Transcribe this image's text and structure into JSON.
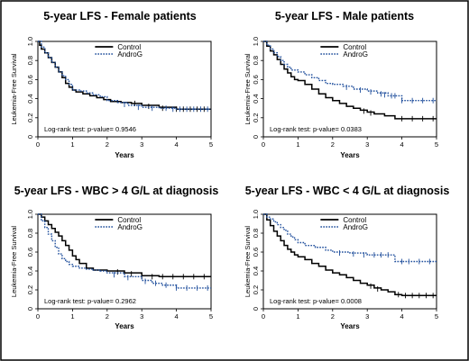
{
  "chart_data": [
    {
      "type": "line",
      "title": "5-year LFS - Female patients",
      "xlabel": "Years",
      "ylabel": "Leukemia-Free Survival",
      "xlim": [
        0,
        5
      ],
      "ylim": [
        0,
        1
      ],
      "xticks": [
        "0",
        "1",
        "2",
        "3",
        "4",
        "5"
      ],
      "yticks": [
        "0",
        "0.2",
        "0.4",
        "0.6",
        "0.8",
        "1.0"
      ],
      "legend_position": "top-center",
      "annotation": "Log-rank test: p-value= 0.9546",
      "series": [
        {
          "name": "Control",
          "color": "#000000",
          "style": "solid",
          "x": [
            0,
            0.05,
            0.1,
            0.2,
            0.3,
            0.4,
            0.5,
            0.6,
            0.7,
            0.8,
            0.9,
            1.0,
            1.1,
            1.3,
            1.5,
            1.7,
            1.9,
            2.1,
            2.4,
            2.7,
            3.0,
            3.5,
            4.0,
            5.0
          ],
          "y": [
            1.0,
            0.96,
            0.92,
            0.88,
            0.83,
            0.78,
            0.73,
            0.68,
            0.62,
            0.56,
            0.52,
            0.49,
            0.47,
            0.45,
            0.43,
            0.41,
            0.39,
            0.37,
            0.36,
            0.35,
            0.33,
            0.31,
            0.29,
            0.29
          ],
          "censor_x": [
            2.8,
            3.2,
            3.6,
            4.0,
            4.2,
            4.4,
            4.6,
            4.8
          ],
          "censor_y": [
            0.35,
            0.32,
            0.3,
            0.29,
            0.29,
            0.29,
            0.29,
            0.29
          ]
        },
        {
          "name": "AndroG",
          "color": "#1f4e9c",
          "style": "dotted",
          "x": [
            0,
            0.1,
            0.2,
            0.3,
            0.4,
            0.5,
            0.6,
            0.7,
            0.8,
            0.9,
            1.0,
            1.2,
            1.4,
            1.6,
            1.8,
            2.0,
            2.3,
            2.6,
            3.0,
            3.5,
            4.0,
            5.0
          ],
          "y": [
            1.0,
            0.94,
            0.88,
            0.83,
            0.78,
            0.73,
            0.68,
            0.64,
            0.6,
            0.55,
            0.49,
            0.48,
            0.46,
            0.44,
            0.42,
            0.38,
            0.36,
            0.33,
            0.31,
            0.3,
            0.29,
            0.29
          ],
          "censor_x": [
            2.5,
            2.9,
            3.3,
            3.7,
            3.9,
            4.1,
            4.3,
            4.5,
            4.7,
            4.9
          ],
          "censor_y": [
            0.34,
            0.31,
            0.3,
            0.3,
            0.29,
            0.29,
            0.29,
            0.29,
            0.29,
            0.29
          ]
        }
      ]
    },
    {
      "type": "line",
      "title": "5-year LFS - Male patients",
      "xlabel": "Years",
      "ylabel": "Leukemia-Free Survival",
      "xlim": [
        0,
        5
      ],
      "ylim": [
        0,
        1
      ],
      "xticks": [
        "0",
        "1",
        "2",
        "3",
        "4",
        "5"
      ],
      "yticks": [
        "0",
        "0.2",
        "0.4",
        "0.6",
        "0.8",
        "1.0"
      ],
      "legend_position": "top-center",
      "annotation": "Log-rank test: p-value= 0.0383",
      "series": [
        {
          "name": "Control",
          "color": "#000000",
          "style": "solid",
          "x": [
            0,
            0.1,
            0.2,
            0.3,
            0.4,
            0.5,
            0.6,
            0.7,
            0.8,
            0.9,
            1.0,
            1.2,
            1.4,
            1.6,
            1.8,
            2.0,
            2.2,
            2.4,
            2.6,
            2.8,
            3.0,
            3.2,
            3.5,
            3.8,
            4.0,
            5.0
          ],
          "y": [
            1.0,
            0.95,
            0.9,
            0.86,
            0.81,
            0.76,
            0.71,
            0.67,
            0.63,
            0.6,
            0.59,
            0.55,
            0.5,
            0.45,
            0.41,
            0.38,
            0.35,
            0.32,
            0.3,
            0.28,
            0.26,
            0.24,
            0.22,
            0.19,
            0.19,
            0.19
          ],
          "censor_x": [
            2.9,
            3.1,
            4.0,
            4.3,
            4.6,
            4.9
          ],
          "censor_y": [
            0.27,
            0.25,
            0.19,
            0.19,
            0.19,
            0.19
          ]
        },
        {
          "name": "AndroG",
          "color": "#1f4e9c",
          "style": "dotted",
          "x": [
            0,
            0.1,
            0.2,
            0.3,
            0.4,
            0.5,
            0.6,
            0.7,
            0.8,
            1.0,
            1.2,
            1.4,
            1.6,
            1.8,
            2.0,
            2.3,
            2.6,
            3.0,
            3.3,
            3.6,
            4.0,
            5.0
          ],
          "y": [
            1.0,
            0.96,
            0.92,
            0.88,
            0.84,
            0.8,
            0.76,
            0.73,
            0.7,
            0.68,
            0.65,
            0.62,
            0.59,
            0.56,
            0.55,
            0.53,
            0.5,
            0.48,
            0.46,
            0.43,
            0.38,
            0.38
          ],
          "censor_x": [
            2.4,
            2.8,
            3.1,
            3.4,
            3.5,
            3.7,
            3.8,
            4.0,
            4.3,
            4.6,
            4.9
          ],
          "censor_y": [
            0.52,
            0.49,
            0.47,
            0.45,
            0.44,
            0.43,
            0.43,
            0.38,
            0.38,
            0.38,
            0.38
          ]
        }
      ]
    },
    {
      "type": "line",
      "title": "5-year LFS - WBC > 4 G/L at diagnosis",
      "xlabel": "Years",
      "ylabel": "Leukemia-Free Survival",
      "xlim": [
        0,
        5
      ],
      "ylim": [
        0,
        1
      ],
      "xticks": [
        "0",
        "1",
        "2",
        "3",
        "4",
        "5"
      ],
      "yticks": [
        "0",
        "0.2",
        "0.4",
        "0.6",
        "0.8",
        "1.0"
      ],
      "legend_position": "top-center",
      "annotation": "Log-rank test: p-value= 0.2962",
      "series": [
        {
          "name": "Control",
          "color": "#000000",
          "style": "solid",
          "x": [
            0,
            0.1,
            0.2,
            0.3,
            0.4,
            0.5,
            0.6,
            0.7,
            0.8,
            0.9,
            1.0,
            1.1,
            1.2,
            1.4,
            1.6,
            1.8,
            2.0,
            2.5,
            3.0,
            3.5,
            5.0
          ],
          "y": [
            1.0,
            0.97,
            0.93,
            0.89,
            0.85,
            0.81,
            0.77,
            0.72,
            0.67,
            0.62,
            0.56,
            0.52,
            0.48,
            0.43,
            0.41,
            0.41,
            0.4,
            0.38,
            0.35,
            0.34,
            0.34
          ],
          "censor_x": [
            2.3,
            2.7,
            3.0,
            3.3,
            3.6,
            3.9,
            4.2,
            4.5,
            4.8
          ],
          "censor_y": [
            0.39,
            0.37,
            0.35,
            0.34,
            0.34,
            0.34,
            0.34,
            0.34,
            0.34
          ]
        },
        {
          "name": "AndroG",
          "color": "#1f4e9c",
          "style": "dotted",
          "x": [
            0,
            0.1,
            0.2,
            0.3,
            0.4,
            0.5,
            0.6,
            0.7,
            0.8,
            0.9,
            1.0,
            1.2,
            1.4,
            1.6,
            1.8,
            2.0,
            2.5,
            3.0,
            3.3,
            3.6,
            4.0,
            5.0
          ],
          "y": [
            1.0,
            0.93,
            0.86,
            0.79,
            0.72,
            0.65,
            0.58,
            0.53,
            0.5,
            0.47,
            0.45,
            0.43,
            0.42,
            0.41,
            0.4,
            0.38,
            0.34,
            0.3,
            0.27,
            0.25,
            0.22,
            0.22
          ],
          "censor_x": [
            2.2,
            2.6,
            3.1,
            3.4,
            3.7,
            4.0,
            4.3,
            4.6,
            4.9
          ],
          "censor_y": [
            0.36,
            0.33,
            0.29,
            0.27,
            0.25,
            0.22,
            0.22,
            0.22,
            0.22
          ]
        }
      ]
    },
    {
      "type": "line",
      "title": "5-year LFS - WBC < 4 G/L at diagnosis",
      "xlabel": "Years",
      "ylabel": "Leukemia-Free Survival",
      "xlim": [
        0,
        5
      ],
      "ylim": [
        0,
        1
      ],
      "xticks": [
        "0",
        "1",
        "2",
        "3",
        "4",
        "5"
      ],
      "yticks": [
        "0",
        "0.2",
        "0.4",
        "0.6",
        "0.8",
        "1.0"
      ],
      "legend_position": "top-center",
      "annotation": "Log-rank test: p-value= 0.0008",
      "series": [
        {
          "name": "Control",
          "color": "#000000",
          "style": "solid",
          "x": [
            0,
            0.1,
            0.2,
            0.3,
            0.4,
            0.5,
            0.6,
            0.7,
            0.8,
            0.9,
            1.0,
            1.2,
            1.4,
            1.6,
            1.8,
            2.0,
            2.2,
            2.4,
            2.6,
            2.8,
            3.0,
            3.2,
            3.4,
            3.6,
            3.8,
            4.0,
            5.0
          ],
          "y": [
            1.0,
            0.94,
            0.88,
            0.82,
            0.77,
            0.72,
            0.67,
            0.63,
            0.6,
            0.57,
            0.55,
            0.52,
            0.48,
            0.45,
            0.41,
            0.38,
            0.36,
            0.33,
            0.3,
            0.27,
            0.25,
            0.22,
            0.2,
            0.18,
            0.15,
            0.14,
            0.14
          ],
          "censor_x": [
            3.1,
            3.3,
            3.9,
            4.1,
            4.3,
            4.5,
            4.7,
            4.9
          ],
          "censor_y": [
            0.24,
            0.21,
            0.15,
            0.14,
            0.14,
            0.14,
            0.14,
            0.14
          ]
        },
        {
          "name": "AndroG",
          "color": "#1f4e9c",
          "style": "dotted",
          "x": [
            0,
            0.1,
            0.2,
            0.3,
            0.4,
            0.5,
            0.6,
            0.7,
            0.8,
            0.9,
            1.0,
            1.2,
            1.5,
            1.8,
            2.0,
            2.5,
            3.0,
            3.5,
            3.8,
            4.0,
            5.0
          ],
          "y": [
            1.0,
            0.97,
            0.95,
            0.92,
            0.89,
            0.86,
            0.83,
            0.79,
            0.76,
            0.73,
            0.7,
            0.67,
            0.65,
            0.62,
            0.6,
            0.59,
            0.57,
            0.57,
            0.5,
            0.5,
            0.5
          ],
          "censor_x": [
            2.2,
            2.6,
            2.9,
            3.2,
            3.4,
            3.6,
            4.0,
            4.2,
            4.5,
            4.8
          ],
          "censor_y": [
            0.59,
            0.58,
            0.57,
            0.57,
            0.57,
            0.57,
            0.5,
            0.5,
            0.5,
            0.5
          ]
        }
      ]
    }
  ]
}
